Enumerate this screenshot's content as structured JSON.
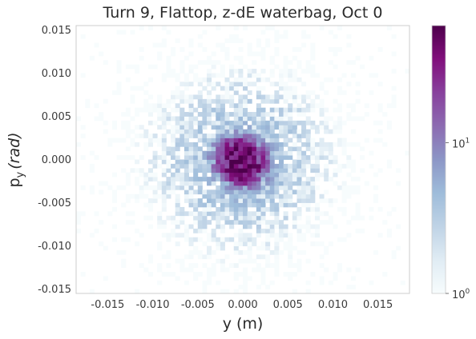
{
  "chart_data": {
    "type": "heatmap",
    "title": "Turn 9, Flattop, z-dE waterbag, Oct 0",
    "xlabel": "y (m)",
    "ylabel_main": "p",
    "ylabel_sub": "y",
    "ylabel_unit": "(rad)",
    "xlim": [
      -0.0185,
      0.0185
    ],
    "ylim": [
      -0.0155,
      0.0155
    ],
    "x_ticks": [
      -0.015,
      -0.01,
      -0.005,
      0.0,
      0.005,
      0.01,
      0.015
    ],
    "x_tick_labels": [
      "-0.015",
      "-0.010",
      "-0.005",
      "0.000",
      "0.005",
      "0.010",
      "0.015"
    ],
    "y_ticks": [
      -0.015,
      -0.01,
      -0.005,
      0.0,
      0.005,
      0.01,
      0.015
    ],
    "y_tick_labels": [
      "-0.015",
      "-0.010",
      "-0.005",
      "0.000",
      "0.005",
      "0.010",
      "0.015"
    ],
    "bin_size": 0.0005,
    "distribution": {
      "x_center": -0.0002,
      "y_center": -0.0002,
      "core_sigma_x": 0.0022,
      "core_sigma_y": 0.002,
      "core_rotation_deg": -35,
      "core_peak_count": 55,
      "halo_sigma": 0.0055,
      "halo_peak_count": 4,
      "outer_sigma": 0.009,
      "seed": 9
    },
    "colorbar": {
      "scale": "log",
      "vmin": 1,
      "vmax": 60,
      "colormap": "BuPu",
      "tick_labels": [
        {
          "value": 1,
          "base": "10",
          "exp": "0"
        },
        {
          "value": 10,
          "base": "10",
          "exp": "1"
        }
      ],
      "colors": [
        "#f7fcfd",
        "#e0ecf4",
        "#bfd3e6",
        "#9ebcda",
        "#8c96c6",
        "#8c6bb1",
        "#88419d",
        "#810f7c",
        "#4d004b"
      ]
    },
    "grid": false,
    "frame_color": "#cccccc"
  }
}
